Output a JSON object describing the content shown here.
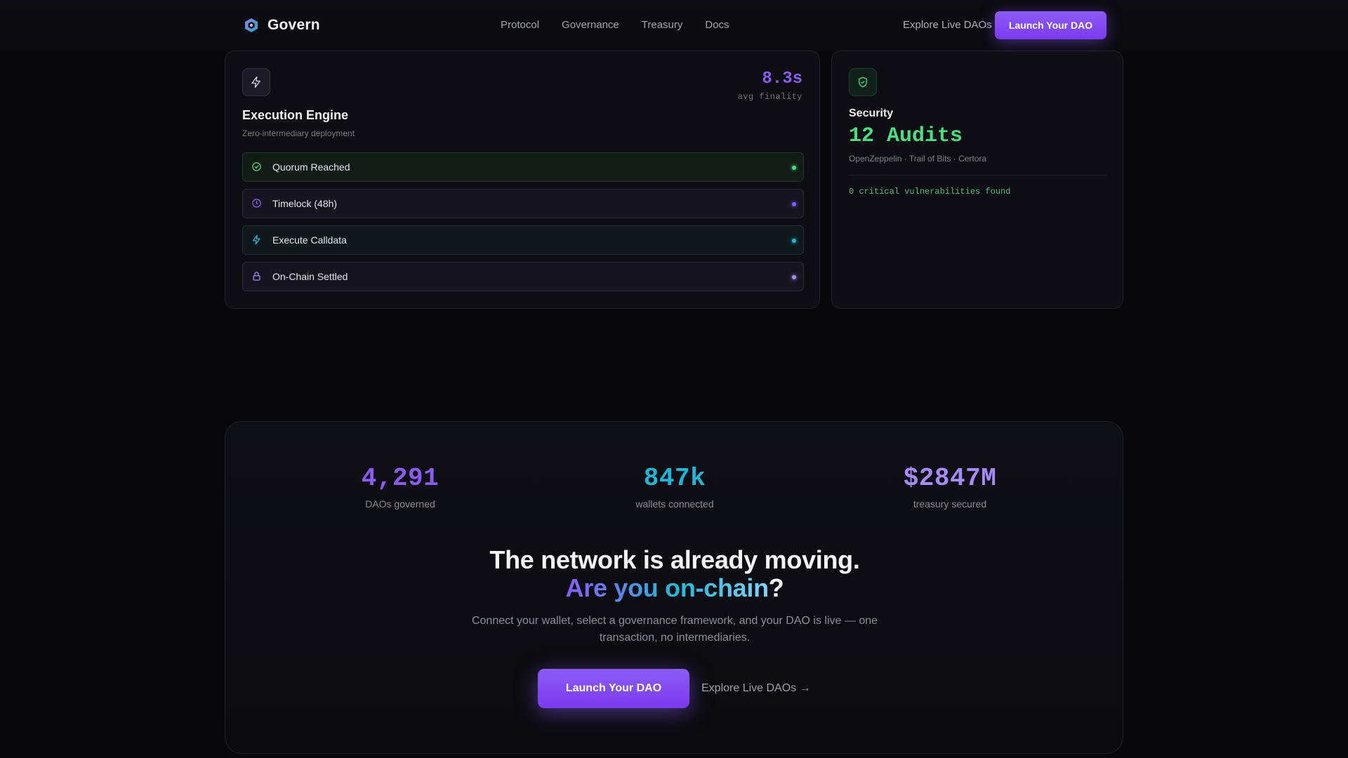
{
  "nav": {
    "logo_text": "Govern",
    "links": [
      "Protocol",
      "Governance",
      "Treasury",
      "Docs"
    ],
    "explore_label": "Explore Live DAOs",
    "launch_label": "Launch Your DAO"
  },
  "execution_card": {
    "icon": "bolt-icon",
    "stat_value": "8.3s",
    "stat_label": "avg finality",
    "title": "Execution Engine",
    "description": "Zero-intermediary deployment",
    "steps": [
      {
        "label": "Quorum Reached",
        "icon": "check-circle-icon",
        "color": "#4ade80"
      },
      {
        "label": "Timelock (48h)",
        "icon": "clock-icon",
        "color": "#8b5cf6"
      },
      {
        "label": "Execute Calldata",
        "icon": "bolt-icon",
        "color": "#22b8d8"
      },
      {
        "label": "On-Chain Settled",
        "icon": "lock-icon",
        "color": "#a78bfa"
      }
    ]
  },
  "security_card": {
    "icon": "shield-check-icon",
    "title": "Security",
    "value": "12 Audits",
    "auditors": "OpenZeppelin · Trail of Bits · Certora",
    "note": "0 critical vulnerabilities found"
  },
  "cta": {
    "metrics": [
      {
        "value": "4,291",
        "label": "DAOs governed"
      },
      {
        "value": "847k",
        "label": "wallets connected"
      },
      {
        "value": "$2847M",
        "label": "treasury secured"
      }
    ],
    "headline": "The network is already moving.",
    "headline2_gradient": "Are you on-chain",
    "headline2_suffix": "?",
    "paragraph": "Connect your wallet, select a governance framework, and your DAO is live — one transaction, no intermediaries.",
    "launch_label": "Launch Your DAO",
    "explore_label": "Explore Live DAOs →"
  },
  "colors": {
    "accent": "#8b5cf6",
    "success": "#4ade80",
    "cyan": "#22b8d8",
    "background": "#08080c"
  }
}
